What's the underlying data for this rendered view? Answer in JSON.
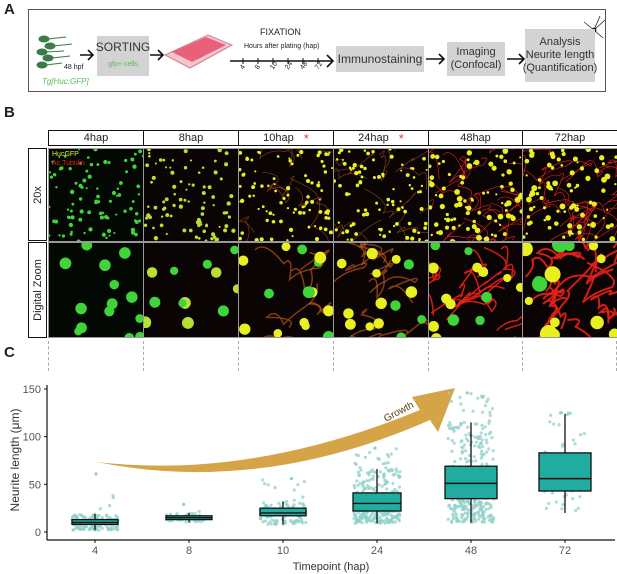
{
  "panel_a": {
    "label": "A",
    "embryo_age": "48 hpf",
    "line": "Tg[Huc:GFP]",
    "sorting": {
      "title": "SORTING",
      "subtitle": "gfp+ cells"
    },
    "fixation": "FIXATION",
    "hours_label": "Hours after plating (hap)",
    "timepoints": [
      "4",
      "8",
      "10",
      "24",
      "48",
      "72"
    ],
    "immunostaining": "Immunostaining",
    "imaging": [
      "Imaging",
      "(Confocal)"
    ],
    "analysis": [
      "Analysis",
      "Neurite length",
      "(Quantification)"
    ],
    "colors": {
      "green_text": "#5bb85b",
      "box": "#d3d3d3",
      "plate": "#e8607a"
    }
  },
  "panel_b": {
    "label": "B",
    "columns": [
      {
        "label": "4hap",
        "star": ""
      },
      {
        "label": "8hap",
        "star": ""
      },
      {
        "label": "10hap",
        "star": "*"
      },
      {
        "label": "24hap",
        "star": "*"
      },
      {
        "label": "48hap",
        "star": ""
      },
      {
        "label": "72hap",
        "star": ""
      }
    ],
    "rows": [
      "20x",
      "Digital Zoom"
    ],
    "legend": {
      "green": "HucGFP",
      "red": "Ac.Tubulin"
    },
    "colors": {
      "green": "#3fd43a",
      "yellow": "#e8f020",
      "red": "#e8201a",
      "star": "#e8383a"
    }
  },
  "panel_c": {
    "label": "C"
  },
  "chart_data": {
    "type": "box",
    "xlabel": "Timepoint (hap)",
    "ylabel": "Neurite length (μm)",
    "categories": [
      "4",
      "8",
      "10",
      "24",
      "48",
      "72"
    ],
    "ylim": [
      0,
      150
    ],
    "yticks": [
      0,
      50,
      100,
      150
    ],
    "boxes": [
      {
        "q1": 8,
        "median": 10,
        "q3": 13,
        "whisker_low": 2,
        "whisker_high": 19
      },
      {
        "q1": 13,
        "median": 15,
        "q3": 17,
        "whisker_low": 10,
        "whisker_high": 20
      },
      {
        "q1": 17,
        "median": 20,
        "q3": 25,
        "whisker_low": 8,
        "whisker_high": 32
      },
      {
        "q1": 22,
        "median": 30,
        "q3": 41,
        "whisker_low": 9,
        "whisker_high": 66
      },
      {
        "q1": 35,
        "median": 51,
        "q3": 69,
        "whisker_low": 10,
        "whisker_high": 115
      },
      {
        "q1": 43,
        "median": 56,
        "q3": 83,
        "whisker_low": 20,
        "whisker_high": 124
      }
    ],
    "max_points": [
      61,
      29,
      56,
      88,
      146,
      125
    ],
    "annotation": "Growth",
    "grid": false,
    "colors": {
      "box": "#20ada0",
      "points": "#8fd0c8",
      "arrow": "#d4a447",
      "growth_text": "#5a3d10"
    }
  }
}
